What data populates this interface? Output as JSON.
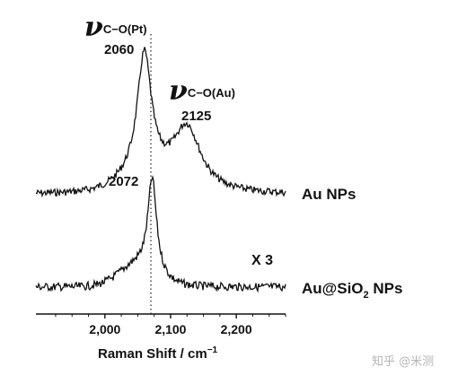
{
  "chart_data": {
    "type": "line",
    "xlabel_main": "Raman Shift / cm",
    "xlabel_sup": "−1",
    "xlim": [
      1895,
      2275
    ],
    "x_ticks": [
      2000,
      2100,
      2200
    ],
    "x_tick_labels": [
      "2,000",
      "2,100",
      "2,200"
    ],
    "dotted_line_x": 2070,
    "series": [
      {
        "name": "Au NPs",
        "scale_note": "",
        "peaks": [
          {
            "x": 2060,
            "label": "2060",
            "height": 1.0,
            "width": 13
          },
          {
            "x": 2125,
            "label": "2125",
            "height": 0.53,
            "width": 26
          }
        ]
      },
      {
        "name_main": "Au@SiO",
        "name_sub": "2",
        "name_tail": " NPs",
        "scale_note": "X 3",
        "peaks": [
          {
            "x": 2072,
            "label": "2072",
            "height": 1.0,
            "width": 8
          }
        ]
      }
    ],
    "mode_labels": [
      {
        "symbol": "ν",
        "subscript": "C−O(Pt)"
      },
      {
        "symbol": "ν",
        "subscript": "C−O(Au)"
      }
    ]
  },
  "watermark": "知乎 @米测"
}
